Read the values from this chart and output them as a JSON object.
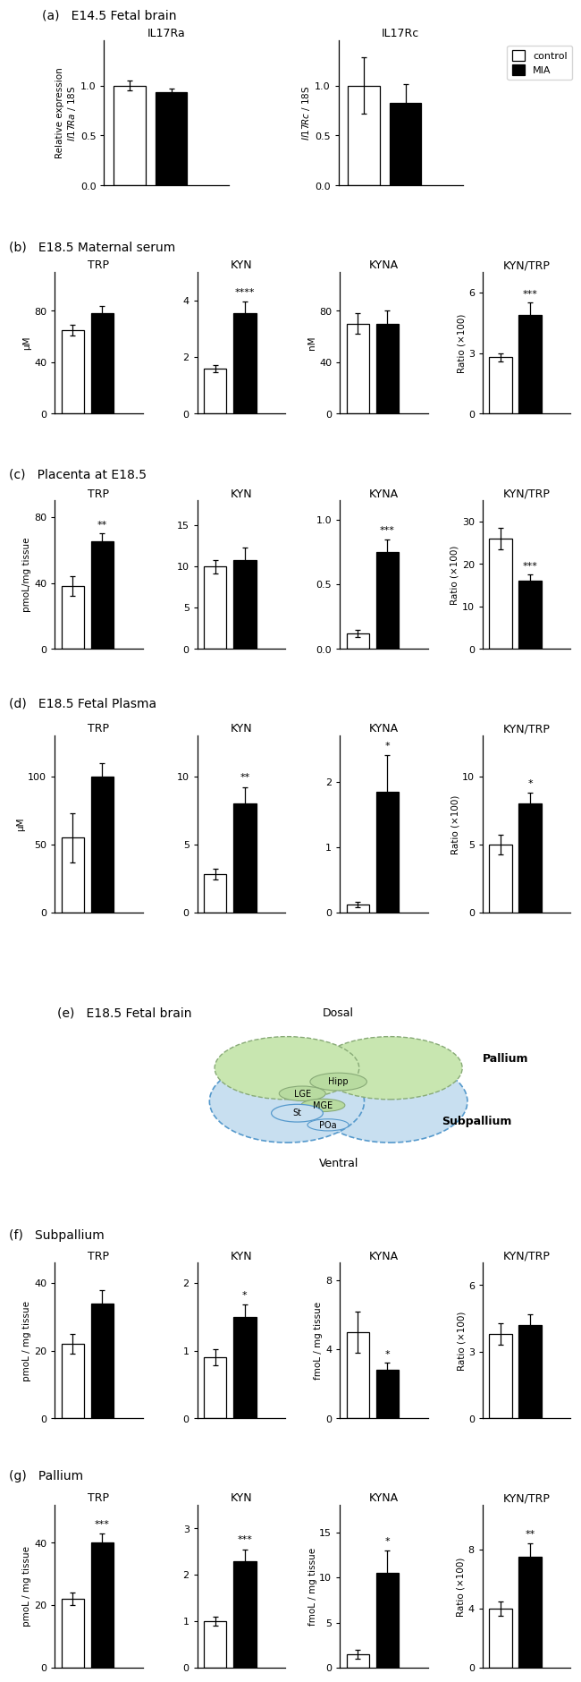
{
  "panel_a": {
    "label": "(a)   E14.5 Fetal brain",
    "subplots": [
      {
        "subtitle": "IL17Ra",
        "ylabel1": "Relative expression",
        "ylabel2": "Il17Ra / 18S",
        "ylim": [
          0,
          1.45
        ],
        "yticks": [
          0.0,
          0.5,
          1.0
        ],
        "control_val": 1.0,
        "control_err": 0.05,
        "mia_val": 0.93,
        "mia_err": 0.04,
        "sig": ""
      },
      {
        "subtitle": "IL17Rc",
        "ylabel1": "",
        "ylabel2": "Il17Rc / 18S",
        "ylim": [
          0,
          1.45
        ],
        "yticks": [
          0.0,
          0.5,
          1.0
        ],
        "control_val": 1.0,
        "control_err": 0.28,
        "mia_val": 0.83,
        "mia_err": 0.18,
        "sig": ""
      }
    ]
  },
  "panel_b": {
    "label": "(b)   E18.5 Maternal serum",
    "subplots": [
      {
        "subtitle": "TRP",
        "ylabel": "μM",
        "ylim": [
          0,
          110
        ],
        "yticks": [
          0,
          40,
          80
        ],
        "control_val": 65,
        "control_err": 4,
        "mia_val": 78,
        "mia_err": 6,
        "sig": ""
      },
      {
        "subtitle": "KYN",
        "ylabel": "",
        "ylim": [
          0,
          5.0
        ],
        "yticks": [
          0,
          2,
          4
        ],
        "control_val": 1.6,
        "control_err": 0.12,
        "mia_val": 3.55,
        "mia_err": 0.42,
        "sig": "****"
      },
      {
        "subtitle": "KYNA",
        "ylabel": "nM",
        "ylim": [
          0,
          110
        ],
        "yticks": [
          0,
          40,
          80
        ],
        "control_val": 70,
        "control_err": 8,
        "mia_val": 70,
        "mia_err": 10,
        "sig": ""
      },
      {
        "subtitle": "KYN/TRP",
        "ylabel": "Ratio (×100)",
        "ylim": [
          0,
          7
        ],
        "yticks": [
          0,
          3,
          6
        ],
        "control_val": 2.8,
        "control_err": 0.2,
        "mia_val": 4.9,
        "mia_err": 0.6,
        "sig": "***"
      }
    ]
  },
  "panel_c": {
    "label": "(c)   Placenta at E18.5",
    "subplots": [
      {
        "subtitle": "TRP",
        "ylabel": "pmoL/mg tissue",
        "ylim": [
          0,
          90
        ],
        "yticks": [
          0,
          40,
          80
        ],
        "control_val": 38,
        "control_err": 6,
        "mia_val": 65,
        "mia_err": 5,
        "sig": "**"
      },
      {
        "subtitle": "KYN",
        "ylabel": "",
        "ylim": [
          0,
          18
        ],
        "yticks": [
          0,
          5,
          10,
          15
        ],
        "control_val": 10.0,
        "control_err": 0.8,
        "mia_val": 10.8,
        "mia_err": 1.5,
        "sig": ""
      },
      {
        "subtitle": "KYNA",
        "ylabel": "",
        "ylim": [
          0,
          1.15
        ],
        "yticks": [
          0.0,
          0.5,
          1.0
        ],
        "control_val": 0.12,
        "control_err": 0.03,
        "mia_val": 0.75,
        "mia_err": 0.1,
        "sig": "***"
      },
      {
        "subtitle": "KYN/TRP",
        "ylabel": "Ratio (×100)",
        "ylim": [
          0,
          35
        ],
        "yticks": [
          0,
          10,
          20,
          30
        ],
        "control_val": 26,
        "control_err": 2.5,
        "mia_val": 16,
        "mia_err": 1.5,
        "sig": "***"
      }
    ]
  },
  "panel_d": {
    "label": "(d)   E18.5 Fetal Plasma",
    "subplots": [
      {
        "subtitle": "TRP",
        "ylabel": "μM",
        "ylim": [
          0,
          130
        ],
        "yticks": [
          0,
          50,
          100
        ],
        "control_val": 55,
        "control_err": 18,
        "mia_val": 100,
        "mia_err": 10,
        "sig": ""
      },
      {
        "subtitle": "KYN",
        "ylabel": "",
        "ylim": [
          0,
          13
        ],
        "yticks": [
          0,
          5,
          10
        ],
        "control_val": 2.8,
        "control_err": 0.4,
        "mia_val": 8.0,
        "mia_err": 1.2,
        "sig": "**"
      },
      {
        "subtitle": "KYNA",
        "ylabel": "",
        "ylim": [
          0,
          2.7
        ],
        "yticks": [
          0,
          1,
          2
        ],
        "control_val": 0.12,
        "control_err": 0.04,
        "mia_val": 1.85,
        "mia_err": 0.55,
        "sig": "*"
      },
      {
        "subtitle": "KYN/TRP",
        "ylabel": "Ratio (×100)",
        "ylim": [
          0,
          13
        ],
        "yticks": [
          0,
          5,
          10
        ],
        "control_val": 5.0,
        "control_err": 0.7,
        "mia_val": 8.0,
        "mia_err": 0.8,
        "sig": "*"
      }
    ]
  },
  "panel_e": {
    "label": "(e)   E18.5 Fetal brain",
    "dosal": "Dosal",
    "ventral": "Ventral",
    "pallium": "Pallium",
    "subpallium": "Subpallium"
  },
  "panel_f": {
    "label": "(f)   Subpallium",
    "subplots": [
      {
        "subtitle": "TRP",
        "ylabel": "pmoL / mg tissue",
        "ylim": [
          0,
          46
        ],
        "yticks": [
          0,
          20,
          40
        ],
        "control_val": 22,
        "control_err": 3,
        "mia_val": 34,
        "mia_err": 4,
        "sig": ""
      },
      {
        "subtitle": "KYN",
        "ylabel": "",
        "ylim": [
          0,
          2.3
        ],
        "yticks": [
          0,
          1,
          2
        ],
        "control_val": 0.9,
        "control_err": 0.12,
        "mia_val": 1.5,
        "mia_err": 0.18,
        "sig": "*"
      },
      {
        "subtitle": "KYNA",
        "ylabel": "fmoL / mg tissue",
        "ylim": [
          0,
          9
        ],
        "yticks": [
          0,
          4,
          8
        ],
        "control_val": 5.0,
        "control_err": 1.2,
        "mia_val": 2.8,
        "mia_err": 0.4,
        "sig": "*"
      },
      {
        "subtitle": "KYN/TRP",
        "ylabel": "Ratio (×100)",
        "ylim": [
          0,
          7
        ],
        "yticks": [
          0,
          3,
          6
        ],
        "control_val": 3.8,
        "control_err": 0.5,
        "mia_val": 4.2,
        "mia_err": 0.5,
        "sig": ""
      }
    ]
  },
  "panel_g": {
    "label": "(g)   Pallium",
    "subplots": [
      {
        "subtitle": "TRP",
        "ylabel": "pmoL / mg tissue",
        "ylim": [
          0,
          52
        ],
        "yticks": [
          0,
          20,
          40
        ],
        "control_val": 22,
        "control_err": 2,
        "mia_val": 40,
        "mia_err": 3,
        "sig": "***"
      },
      {
        "subtitle": "KYN",
        "ylabel": "",
        "ylim": [
          0,
          3.5
        ],
        "yticks": [
          0,
          1,
          2,
          3
        ],
        "control_val": 1.0,
        "control_err": 0.1,
        "mia_val": 2.3,
        "mia_err": 0.25,
        "sig": "***"
      },
      {
        "subtitle": "KYNA",
        "ylabel": "fmoL / mg tissue",
        "ylim": [
          0,
          18
        ],
        "yticks": [
          0,
          5,
          10,
          15
        ],
        "control_val": 1.5,
        "control_err": 0.5,
        "mia_val": 10.5,
        "mia_err": 2.5,
        "sig": "*"
      },
      {
        "subtitle": "KYN/TRP",
        "ylabel": "Ratio (×100)",
        "ylim": [
          0,
          11
        ],
        "yticks": [
          0,
          4,
          8
        ],
        "control_val": 4.0,
        "control_err": 0.5,
        "mia_val": 7.5,
        "mia_err": 0.9,
        "sig": "**"
      }
    ]
  }
}
